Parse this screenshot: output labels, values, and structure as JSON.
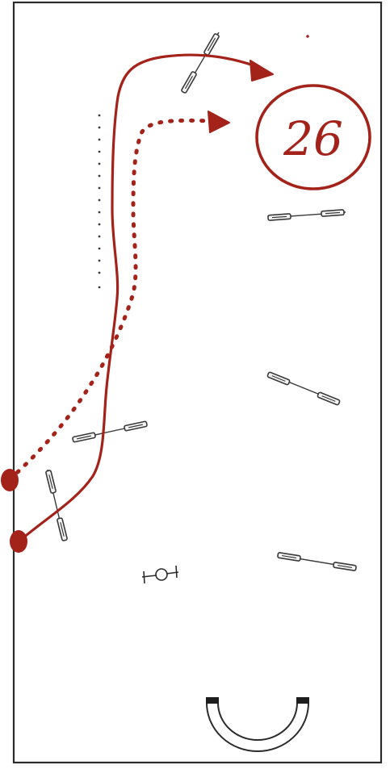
{
  "course": {
    "number": "26"
  },
  "colors": {
    "border": "#2b2b2b",
    "path": "#a3231b",
    "obstacle": "#3a3a3a",
    "pole_fill": "#f4f4f4"
  },
  "elements": {
    "path_solid": "solid-route-line",
    "path_dashed": "dotted-route-line",
    "dotted_boundary": "dotted-rail",
    "obstacles": [
      "pole-pair-top",
      "pole-pair-right-1",
      "pole-pair-right-2",
      "pole-pair-right-3",
      "pole-pair-left-middle",
      "pole-pair-left-lower",
      "hurdle-symbol",
      "semi-circle-barrel"
    ]
  }
}
